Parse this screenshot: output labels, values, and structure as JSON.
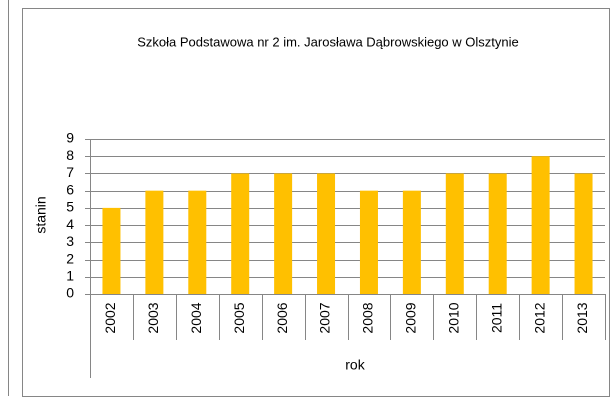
{
  "chart_data": {
    "type": "bar",
    "title": "Szkoła Podstawowa nr 2 im. Jarosława Dąbrowskiego w Olsztynie",
    "xlabel": "rok",
    "ylabel": "stanin",
    "categories": [
      "2002",
      "2003",
      "2004",
      "2005",
      "2006",
      "2007",
      "2008",
      "2009",
      "2010",
      "2011",
      "2012",
      "2013"
    ],
    "values": [
      5,
      6,
      6,
      7,
      7,
      7,
      6,
      6,
      7,
      7,
      8,
      7
    ],
    "color": "#ffc000",
    "ylim": [
      0,
      9
    ],
    "yticks": [
      0,
      1,
      2,
      3,
      4,
      5,
      6,
      7,
      8,
      9
    ],
    "grid": true
  }
}
